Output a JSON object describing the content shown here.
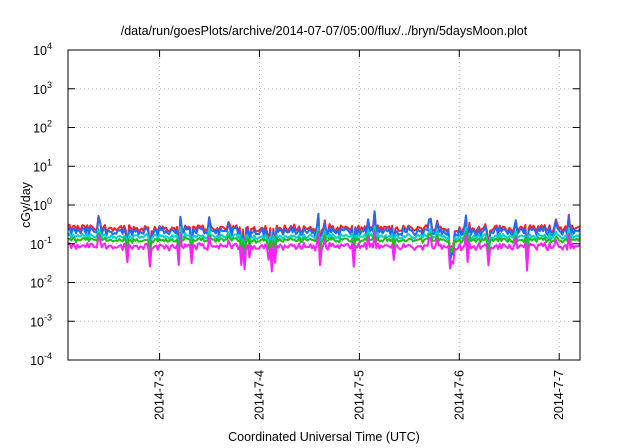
{
  "chart_data": {
    "type": "line",
    "title": "/data/run/goesPlots/archive/2014-07-07/05:00/flux/../bryn/5daysMoon.plot",
    "xlabel": "Coordinated Universal Time (UTC)",
    "ylabel": "cGy/day",
    "yscale": "log",
    "ylim": [
      0.0001,
      10000
    ],
    "y_ticks": [
      {
        "base": "10",
        "exp": "-4",
        "value": 0.0001
      },
      {
        "base": "10",
        "exp": "-3",
        "value": 0.001
      },
      {
        "base": "10",
        "exp": "-2",
        "value": 0.01
      },
      {
        "base": "10",
        "exp": "-1",
        "value": 0.1
      },
      {
        "base": "10",
        "exp": "0",
        "value": 1
      },
      {
        "base": "10",
        "exp": "1",
        "value": 10
      },
      {
        "base": "10",
        "exp": "2",
        "value": 100
      },
      {
        "base": "10",
        "exp": "3",
        "value": 1000
      },
      {
        "base": "10",
        "exp": "4",
        "value": 10000
      }
    ],
    "xlim": [
      "2014-07-02 02:00",
      "2014-07-07 05:00"
    ],
    "x_ticks": [
      {
        "label": "2014-7-3",
        "value": "2014-07-03"
      },
      {
        "label": "2014-7-4",
        "value": "2014-07-04"
      },
      {
        "label": "2014-7-5",
        "value": "2014-07-05"
      },
      {
        "label": "2014-7-6",
        "value": "2014-07-06"
      },
      {
        "label": "2014-7-7",
        "value": "2014-07-07"
      }
    ],
    "grid": true,
    "legend": "none",
    "series": [
      {
        "color": "#ff2020",
        "level": 0.25,
        "spread": 0.18
      },
      {
        "color": "#1e6cff",
        "level": 0.21,
        "spread": 0.22
      },
      {
        "color": "#00d2c8",
        "level": 0.155,
        "spread": 0.12
      },
      {
        "color": "#22b822",
        "level": 0.125,
        "spread": 0.1
      },
      {
        "color": "#ff20ff",
        "level": 0.085,
        "spread": 0.16
      }
    ]
  }
}
